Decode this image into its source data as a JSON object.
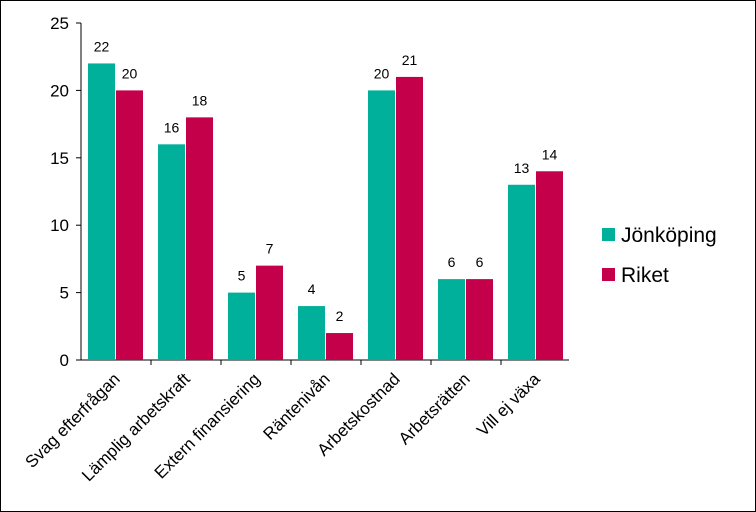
{
  "chart_data": {
    "type": "bar",
    "categories": [
      "Svag efterfrågan",
      "Lämplig arbetskraft",
      "Extern finansiering",
      "Räntenivån",
      "Arbetskostnad",
      "Arbetsrätten",
      "Vill ej växa"
    ],
    "series": [
      {
        "name": "Jönköping",
        "color": "#00b09b",
        "values": [
          22,
          16,
          5,
          4,
          20,
          6,
          13
        ]
      },
      {
        "name": "Riket",
        "color": "#c5004a",
        "values": [
          20,
          18,
          7,
          2,
          21,
          6,
          14
        ]
      }
    ],
    "title": "",
    "xlabel": "",
    "ylabel": "",
    "ylim": [
      0,
      25
    ],
    "yticks": [
      0,
      5,
      10,
      15,
      20,
      25
    ],
    "grid": false,
    "legend_position": "right",
    "data_labels": true
  }
}
